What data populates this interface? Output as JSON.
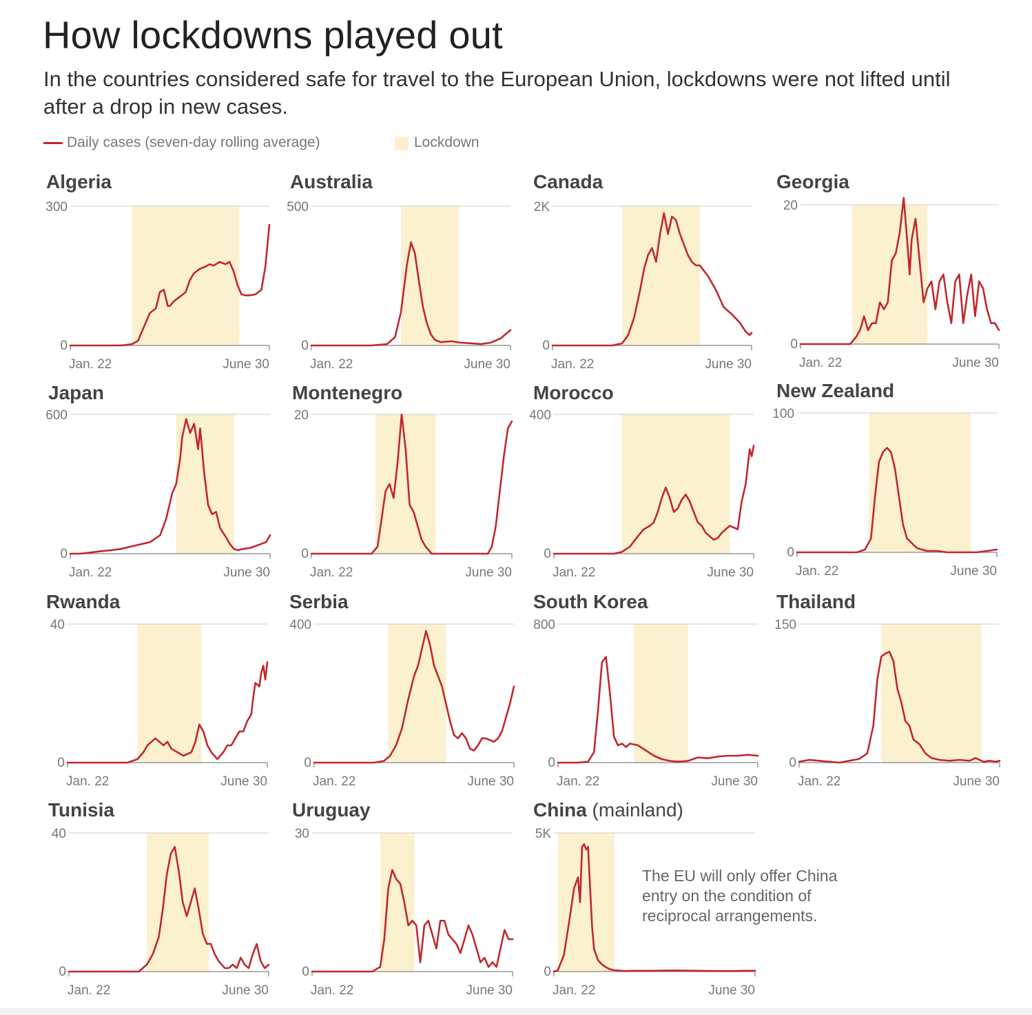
{
  "title": "How lockdowns played out",
  "subtitle": "In the countries considered safe for travel to the European Union, lockdowns were not lifted until after a drop in new cases.",
  "legend": {
    "line_label": "Daily cases (seven-day rolling average)",
    "area_label": "Lockdown"
  },
  "note": "The EU will only offer China entry on the condition of reciprocal arrangements.",
  "colors": {
    "line": "#c1272d",
    "lockdown": "#fbf1cf",
    "axis": "#999999",
    "grid": "#cccccc",
    "tick_text": "#777777"
  },
  "chart_data": [
    {
      "type": "line",
      "title": "Algeria",
      "x_start": "Jan. 22",
      "x_end": "June 30",
      "ylim": [
        0,
        300
      ],
      "yticks": [
        "0",
        "300"
      ],
      "lockdown": [
        0.31,
        0.85
      ],
      "x": [
        0,
        0.05,
        0.1,
        0.15,
        0.2,
        0.25,
        0.28,
        0.31,
        0.34,
        0.37,
        0.4,
        0.43,
        0.45,
        0.47,
        0.49,
        0.5,
        0.52,
        0.55,
        0.58,
        0.6,
        0.62,
        0.65,
        0.68,
        0.7,
        0.72,
        0.75,
        0.78,
        0.8,
        0.82,
        0.84,
        0.86,
        0.88,
        0.9,
        0.93,
        0.96,
        0.98,
        1.0
      ],
      "y": [
        0,
        0,
        0,
        0,
        0,
        0,
        1,
        3,
        10,
        40,
        70,
        80,
        115,
        120,
        85,
        85,
        95,
        105,
        115,
        140,
        155,
        165,
        170,
        175,
        172,
        180,
        175,
        180,
        160,
        130,
        110,
        108,
        108,
        110,
        120,
        170,
        260
      ]
    },
    {
      "type": "line",
      "title": "Australia",
      "x_start": "Jan. 22",
      "x_end": "June 30",
      "ylim": [
        0,
        500
      ],
      "yticks": [
        "0",
        "500"
      ],
      "lockdown": [
        0.45,
        0.74
      ],
      "x": [
        0,
        0.1,
        0.2,
        0.3,
        0.38,
        0.42,
        0.45,
        0.48,
        0.5,
        0.52,
        0.54,
        0.56,
        0.58,
        0.6,
        0.62,
        0.65,
        0.7,
        0.75,
        0.8,
        0.85,
        0.9,
        0.95,
        1.0
      ],
      "y": [
        0,
        0,
        0,
        0,
        5,
        30,
        120,
        290,
        370,
        330,
        230,
        140,
        80,
        40,
        20,
        12,
        15,
        10,
        8,
        5,
        10,
        25,
        55
      ]
    },
    {
      "type": "line",
      "title": "Canada",
      "x_start": "Jan. 22",
      "x_end": "June 30",
      "ylim": [
        0,
        2000
      ],
      "yticks": [
        "0",
        "2K"
      ],
      "lockdown": [
        0.35,
        0.74
      ],
      "x": [
        0,
        0.1,
        0.2,
        0.3,
        0.35,
        0.38,
        0.41,
        0.44,
        0.46,
        0.48,
        0.5,
        0.52,
        0.54,
        0.56,
        0.58,
        0.6,
        0.62,
        0.64,
        0.66,
        0.68,
        0.7,
        0.72,
        0.74,
        0.78,
        0.82,
        0.86,
        0.9,
        0.94,
        0.97,
        0.99,
        1.0
      ],
      "y": [
        0,
        0,
        0,
        0,
        30,
        150,
        400,
        800,
        1100,
        1300,
        1400,
        1200,
        1600,
        1900,
        1600,
        1850,
        1800,
        1600,
        1450,
        1300,
        1200,
        1150,
        1150,
        1000,
        800,
        550,
        450,
        330,
        200,
        150,
        180
      ]
    },
    {
      "type": "line",
      "title": "Georgia",
      "x_start": "Jan. 22",
      "x_end": "June 30",
      "ylim": [
        0,
        20
      ],
      "yticks": [
        "0",
        "20"
      ],
      "lockdown": [
        0.26,
        0.64
      ],
      "x": [
        0,
        0.05,
        0.1,
        0.15,
        0.2,
        0.25,
        0.28,
        0.3,
        0.32,
        0.34,
        0.36,
        0.38,
        0.4,
        0.42,
        0.44,
        0.46,
        0.48,
        0.5,
        0.52,
        0.54,
        0.55,
        0.56,
        0.58,
        0.6,
        0.62,
        0.64,
        0.66,
        0.68,
        0.7,
        0.72,
        0.74,
        0.76,
        0.78,
        0.8,
        0.82,
        0.84,
        0.86,
        0.88,
        0.9,
        0.92,
        0.94,
        0.96,
        0.98,
        1.0
      ],
      "y": [
        0,
        0,
        0,
        0,
        0,
        0,
        1,
        2,
        4,
        2,
        3,
        3,
        6,
        5,
        6,
        12,
        13,
        16,
        21,
        14,
        10,
        15,
        18,
        12,
        6,
        8,
        9,
        5,
        9,
        10,
        6,
        3,
        9,
        10,
        3,
        7,
        10,
        4,
        9,
        8,
        5,
        3,
        3,
        2
      ]
    },
    {
      "type": "line",
      "title": "Japan",
      "x_start": "Jan. 22",
      "x_end": "June 30",
      "ylim": [
        0,
        600
      ],
      "yticks": [
        "0",
        "600"
      ],
      "lockdown": [
        0.53,
        0.82
      ],
      "x": [
        0,
        0.05,
        0.1,
        0.15,
        0.2,
        0.25,
        0.3,
        0.35,
        0.4,
        0.45,
        0.48,
        0.51,
        0.53,
        0.55,
        0.56,
        0.58,
        0.6,
        0.62,
        0.64,
        0.65,
        0.67,
        0.69,
        0.71,
        0.73,
        0.75,
        0.78,
        0.8,
        0.82,
        0.84,
        0.86,
        0.9,
        0.95,
        0.98,
        1.0
      ],
      "y": [
        0,
        0,
        5,
        10,
        15,
        20,
        30,
        40,
        50,
        80,
        150,
        260,
        300,
        410,
        500,
        580,
        520,
        560,
        450,
        540,
        350,
        210,
        170,
        180,
        110,
        70,
        40,
        20,
        15,
        20,
        25,
        40,
        50,
        80
      ]
    },
    {
      "type": "line",
      "title": "Montenegro",
      "x_start": "Jan. 22",
      "x_end": "June 30",
      "ylim": [
        0,
        20
      ],
      "yticks": [
        "0",
        "20"
      ],
      "lockdown": [
        0.32,
        0.62
      ],
      "x": [
        0,
        0.05,
        0.1,
        0.15,
        0.2,
        0.25,
        0.3,
        0.33,
        0.35,
        0.37,
        0.39,
        0.41,
        0.43,
        0.45,
        0.47,
        0.49,
        0.51,
        0.53,
        0.55,
        0.57,
        0.6,
        0.63,
        0.66,
        0.7,
        0.75,
        0.8,
        0.85,
        0.88,
        0.9,
        0.92,
        0.94,
        0.96,
        0.98,
        1.0
      ],
      "y": [
        0,
        0,
        0,
        0,
        0,
        0,
        0,
        1,
        5,
        9,
        10,
        8,
        13,
        20,
        15,
        7,
        6,
        4,
        2,
        1,
        0,
        0,
        0,
        0,
        0,
        0,
        0,
        0,
        1,
        4,
        9,
        14,
        18,
        19
      ]
    },
    {
      "type": "line",
      "title": "Morocco",
      "x_start": "Jan. 22",
      "x_end": "June 30",
      "ylim": [
        0,
        400
      ],
      "yticks": [
        "0",
        "400"
      ],
      "lockdown": [
        0.34,
        0.88
      ],
      "x": [
        0,
        0.1,
        0.2,
        0.3,
        0.34,
        0.38,
        0.42,
        0.45,
        0.48,
        0.5,
        0.52,
        0.54,
        0.56,
        0.58,
        0.6,
        0.62,
        0.64,
        0.66,
        0.68,
        0.7,
        0.72,
        0.74,
        0.76,
        0.78,
        0.8,
        0.82,
        0.84,
        0.86,
        0.88,
        0.9,
        0.92,
        0.94,
        0.96,
        0.98,
        0.99,
        1.0
      ],
      "y": [
        0,
        0,
        0,
        0,
        5,
        20,
        50,
        70,
        80,
        90,
        120,
        160,
        190,
        160,
        120,
        130,
        155,
        170,
        150,
        120,
        90,
        80,
        60,
        50,
        40,
        45,
        60,
        70,
        80,
        75,
        70,
        150,
        200,
        300,
        280,
        310
      ]
    },
    {
      "type": "line",
      "title": "New Zealand",
      "x_start": "Jan. 22",
      "x_end": "June 30",
      "ylim": [
        0,
        100
      ],
      "yticks": [
        "0",
        "100"
      ],
      "lockdown": [
        0.36,
        0.87
      ],
      "x": [
        0,
        0.1,
        0.2,
        0.3,
        0.34,
        0.37,
        0.39,
        0.41,
        0.43,
        0.45,
        0.47,
        0.49,
        0.51,
        0.53,
        0.55,
        0.6,
        0.65,
        0.7,
        0.75,
        0.8,
        0.85,
        0.9,
        0.95,
        1.0
      ],
      "y": [
        0,
        0,
        0,
        0,
        2,
        10,
        40,
        65,
        72,
        75,
        72,
        60,
        40,
        20,
        10,
        3,
        1,
        1,
        0,
        0,
        0,
        0,
        1,
        2
      ]
    },
    {
      "type": "line",
      "title": "Rwanda",
      "x_start": "Jan. 22",
      "x_end": "June 30",
      "ylim": [
        0,
        40
      ],
      "yticks": [
        "0",
        "40"
      ],
      "lockdown": [
        0.35,
        0.67
      ],
      "x": [
        0,
        0.1,
        0.2,
        0.3,
        0.35,
        0.38,
        0.4,
        0.42,
        0.44,
        0.46,
        0.48,
        0.5,
        0.52,
        0.55,
        0.58,
        0.62,
        0.64,
        0.66,
        0.68,
        0.7,
        0.72,
        0.75,
        0.78,
        0.8,
        0.82,
        0.84,
        0.86,
        0.88,
        0.9,
        0.92,
        0.93,
        0.94,
        0.96,
        0.97,
        0.98,
        0.99,
        1.0
      ],
      "y": [
        0,
        0,
        0,
        0,
        1,
        3,
        5,
        6,
        7,
        6,
        5,
        6,
        4,
        3,
        2,
        3,
        6,
        11,
        9,
        5,
        3,
        1,
        3,
        5,
        5,
        7,
        9,
        9,
        12,
        14,
        19,
        23,
        22,
        26,
        28,
        24,
        29
      ]
    },
    {
      "type": "line",
      "title": "Serbia",
      "x_start": "Jan. 22",
      "x_end": "June 30",
      "ylim": [
        0,
        400
      ],
      "yticks": [
        "0",
        "400"
      ],
      "lockdown": [
        0.37,
        0.66
      ],
      "x": [
        0,
        0.1,
        0.2,
        0.3,
        0.35,
        0.38,
        0.41,
        0.44,
        0.47,
        0.5,
        0.52,
        0.54,
        0.56,
        0.58,
        0.6,
        0.62,
        0.64,
        0.66,
        0.68,
        0.7,
        0.72,
        0.74,
        0.76,
        0.78,
        0.8,
        0.82,
        0.84,
        0.86,
        0.88,
        0.9,
        0.92,
        0.94,
        0.96,
        0.98,
        1.0
      ],
      "y": [
        0,
        0,
        0,
        0,
        5,
        20,
        50,
        100,
        180,
        250,
        280,
        330,
        380,
        340,
        280,
        250,
        220,
        170,
        120,
        80,
        70,
        85,
        70,
        40,
        35,
        50,
        70,
        70,
        65,
        60,
        70,
        90,
        130,
        170,
        220
      ]
    },
    {
      "type": "line",
      "title": "South Korea",
      "x_start": "Jan. 22",
      "x_end": "June 30",
      "ylim": [
        0,
        800
      ],
      "yticks": [
        "0",
        "800"
      ],
      "lockdown": [
        0.38,
        0.65
      ],
      "x": [
        0,
        0.1,
        0.15,
        0.18,
        0.2,
        0.22,
        0.24,
        0.26,
        0.28,
        0.3,
        0.32,
        0.34,
        0.36,
        0.4,
        0.44,
        0.48,
        0.52,
        0.56,
        0.6,
        0.65,
        0.7,
        0.75,
        0.8,
        0.85,
        0.9,
        0.95,
        1.0
      ],
      "y": [
        0,
        0,
        5,
        60,
        300,
        580,
        610,
        400,
        150,
        100,
        110,
        90,
        110,
        100,
        70,
        40,
        20,
        10,
        5,
        10,
        30,
        25,
        35,
        40,
        40,
        45,
        40
      ]
    },
    {
      "type": "line",
      "title": "Thailand",
      "x_start": "Jan. 22",
      "x_end": "June 30",
      "ylim": [
        0,
        150
      ],
      "yticks": [
        "0",
        "150"
      ],
      "lockdown": [
        0.41,
        0.91
      ],
      "x": [
        0,
        0.05,
        0.1,
        0.15,
        0.2,
        0.25,
        0.3,
        0.34,
        0.37,
        0.39,
        0.41,
        0.43,
        0.45,
        0.47,
        0.49,
        0.51,
        0.53,
        0.55,
        0.57,
        0.6,
        0.63,
        0.66,
        0.7,
        0.75,
        0.8,
        0.85,
        0.88,
        0.9,
        0.92,
        0.95,
        0.98,
        1.0
      ],
      "y": [
        1,
        3,
        2,
        1,
        0,
        2,
        4,
        10,
        40,
        90,
        115,
        118,
        120,
        110,
        80,
        65,
        45,
        40,
        25,
        20,
        10,
        5,
        3,
        2,
        3,
        2,
        5,
        3,
        1,
        2,
        1,
        2
      ]
    },
    {
      "type": "line",
      "title": "Tunisia",
      "x_start": "Jan. 22",
      "x_end": "June 30",
      "ylim": [
        0,
        40
      ],
      "yticks": [
        "0",
        "40"
      ],
      "lockdown": [
        0.39,
        0.7
      ],
      "x": [
        0,
        0.1,
        0.2,
        0.3,
        0.35,
        0.39,
        0.42,
        0.45,
        0.47,
        0.49,
        0.51,
        0.53,
        0.55,
        0.57,
        0.59,
        0.61,
        0.63,
        0.65,
        0.67,
        0.69,
        0.71,
        0.73,
        0.75,
        0.78,
        0.8,
        0.82,
        0.84,
        0.86,
        0.88,
        0.9,
        0.92,
        0.94,
        0.96,
        0.98,
        1.0
      ],
      "y": [
        0,
        0,
        0,
        0,
        0,
        2,
        5,
        10,
        18,
        28,
        34,
        36,
        29,
        20,
        16,
        20,
        24,
        18,
        11,
        8,
        8,
        5,
        3,
        1,
        1,
        2,
        1,
        4,
        2,
        1,
        5,
        8,
        3,
        1,
        2
      ]
    },
    {
      "type": "line",
      "title": "Uruguay",
      "x_start": "Jan. 22",
      "x_end": "June 30",
      "ylim": [
        0,
        30
      ],
      "yticks": [
        "0",
        "30"
      ],
      "lockdown": [
        0.34,
        0.51
      ],
      "x": [
        0,
        0.1,
        0.2,
        0.3,
        0.34,
        0.36,
        0.38,
        0.4,
        0.42,
        0.44,
        0.46,
        0.48,
        0.5,
        0.52,
        0.54,
        0.56,
        0.58,
        0.6,
        0.62,
        0.64,
        0.66,
        0.68,
        0.7,
        0.72,
        0.74,
        0.76,
        0.78,
        0.8,
        0.82,
        0.84,
        0.86,
        0.88,
        0.9,
        0.92,
        0.94,
        0.96,
        0.98,
        1.0
      ],
      "y": [
        0,
        0,
        0,
        0,
        1,
        7,
        18,
        22,
        20,
        19,
        15,
        10,
        11,
        10,
        2,
        10,
        11,
        8,
        5,
        11,
        11,
        8,
        7,
        6,
        4,
        7,
        10,
        8,
        5,
        2,
        3,
        1,
        2,
        1,
        5,
        9,
        7,
        7
      ]
    },
    {
      "type": "line",
      "title": "China",
      "title_suffix": "(mainland)",
      "x_start": "Jan. 22",
      "x_end": "June 30",
      "ylim": [
        0,
        5000
      ],
      "yticks": [
        "0",
        "5K"
      ],
      "lockdown": [
        0.02,
        0.3
      ],
      "x": [
        0,
        0.02,
        0.05,
        0.08,
        0.1,
        0.12,
        0.13,
        0.14,
        0.15,
        0.16,
        0.17,
        0.18,
        0.19,
        0.2,
        0.22,
        0.24,
        0.26,
        0.28,
        0.3,
        0.35,
        0.4,
        0.5,
        0.6,
        0.7,
        0.8,
        0.9,
        0.95,
        1.0
      ],
      "y": [
        0,
        50,
        600,
        2000,
        3000,
        3400,
        2500,
        4500,
        4600,
        4400,
        4500,
        3000,
        1600,
        800,
        400,
        250,
        150,
        80,
        50,
        20,
        30,
        30,
        40,
        30,
        20,
        20,
        30,
        30
      ]
    }
  ]
}
